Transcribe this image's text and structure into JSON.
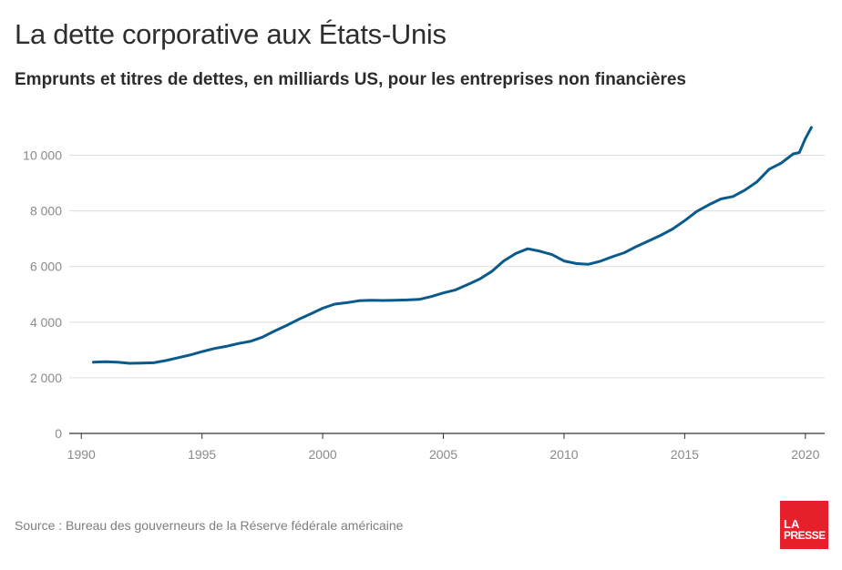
{
  "header": {
    "title": "La dette corporative aux États-Unis",
    "subtitle": "Emprunts et titres de dettes, en milliards US, pour les entreprises non financières"
  },
  "footer": {
    "source": "Source : Bureau des gouverneurs de la Réserve fédérale américaine",
    "logo_line1": "LA",
    "logo_line2": "PRESSE"
  },
  "colors": {
    "line": "#0b5a8c",
    "grid": "#dcdcdc",
    "axis": "#333333",
    "tick_text": "#8a8a8a",
    "logo_bg": "#e5202a"
  },
  "chart_data": {
    "type": "line",
    "xlim": [
      1989.5,
      2020.8
    ],
    "ylim": [
      0,
      11000
    ],
    "x_ticks": [
      1990,
      1995,
      2000,
      2005,
      2010,
      2015,
      2020
    ],
    "y_ticks": [
      0,
      2000,
      4000,
      6000,
      8000,
      10000
    ],
    "x_tick_labels": [
      "1990",
      "1995",
      "2000",
      "2005",
      "2010",
      "2015",
      "2020"
    ],
    "y_tick_labels": [
      "0",
      "2 000",
      "4 000",
      "6 000",
      "8 000",
      "10 000"
    ],
    "grid": "horizontal",
    "series": [
      {
        "x": [
          1990.5,
          1991.0,
          1991.5,
          1992.0,
          1992.5,
          1993.0,
          1993.5,
          1994.0,
          1994.5,
          1995.0,
          1995.5,
          1996.0,
          1996.5,
          1997.0,
          1997.5,
          1998.0,
          1998.5,
          1999.0,
          1999.5,
          2000.0,
          2000.5,
          2001.0,
          2001.5,
          2002.0,
          2002.5,
          2003.0,
          2003.5,
          2004.0,
          2004.5,
          2005.0,
          2005.5,
          2006.0,
          2006.5,
          2007.0,
          2007.5,
          2008.0,
          2008.5,
          2009.0,
          2009.5,
          2010.0,
          2010.5,
          2011.0,
          2011.5,
          2012.0,
          2012.5,
          2013.0,
          2013.5,
          2014.0,
          2014.5,
          2015.0,
          2015.5,
          2016.0,
          2016.5,
          2017.0,
          2017.5,
          2018.0,
          2018.5,
          2019.0,
          2019.5,
          2019.75,
          2020.0,
          2020.25
        ],
        "values": [
          2560,
          2580,
          2560,
          2520,
          2530,
          2540,
          2620,
          2720,
          2820,
          2940,
          3050,
          3130,
          3230,
          3310,
          3460,
          3680,
          3880,
          4100,
          4300,
          4500,
          4650,
          4700,
          4770,
          4790,
          4780,
          4790,
          4800,
          4820,
          4920,
          5050,
          5160,
          5350,
          5550,
          5820,
          6200,
          6470,
          6640,
          6550,
          6430,
          6200,
          6110,
          6080,
          6190,
          6350,
          6500,
          6720,
          6920,
          7120,
          7350,
          7650,
          7980,
          8220,
          8430,
          8520,
          8750,
          9050,
          9500,
          9720,
          10050,
          10100,
          10600,
          11000
        ]
      }
    ]
  }
}
